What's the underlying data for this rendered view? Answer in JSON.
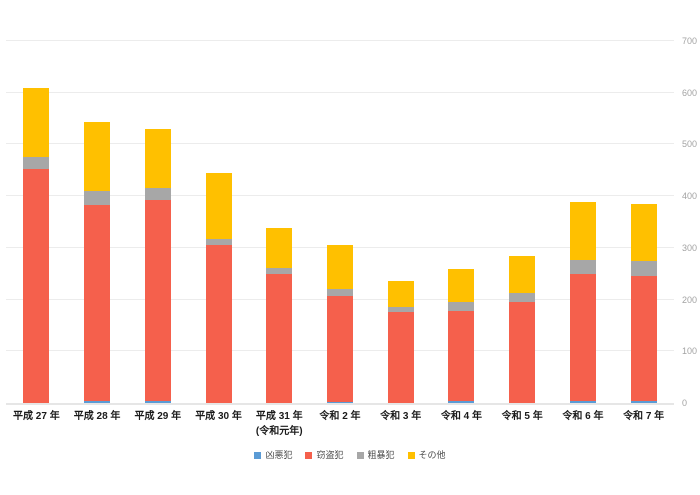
{
  "chart_data": {
    "type": "bar",
    "stacked": true,
    "title": "",
    "xlabel": "",
    "ylabel": "",
    "categories": [
      "平成 27 年",
      "平成 28 年",
      "平成 29 年",
      "平成 30 年",
      "平成 31 年 (令和元年)",
      "令和 2 年",
      "令和 3 年",
      "令和 4 年",
      "令和 5 年",
      "令和 6 年",
      "令和 7 年"
    ],
    "category_label_lines": [
      [
        "平成 27 年"
      ],
      [
        "平成 28 年"
      ],
      [
        "平成 29 年"
      ],
      [
        "平成 30 年"
      ],
      [
        "平成 31 年",
        "(令和元年)"
      ],
      [
        "令和 2 年"
      ],
      [
        "令和 3 年"
      ],
      [
        "令和 4 年"
      ],
      [
        "令和 5 年"
      ],
      [
        "令和 6 年"
      ],
      [
        "令和 7 年"
      ]
    ],
    "series": [
      {
        "name": "凶悪犯",
        "color": "#5B9BD5",
        "values": [
          0,
          3,
          3,
          0,
          0,
          2,
          0,
          3,
          0,
          3,
          3
        ]
      },
      {
        "name": "窃盗犯",
        "color": "#F5604C",
        "values": [
          453,
          379,
          390,
          305,
          249,
          204,
          176,
          175,
          196,
          246,
          243
        ]
      },
      {
        "name": "粗暴犯",
        "color": "#A7A7A7",
        "values": [
          23,
          28,
          22,
          12,
          12,
          14,
          9,
          17,
          17,
          27,
          29
        ]
      },
      {
        "name": "その他",
        "color": "#FFC000",
        "values": [
          134,
          134,
          114,
          128,
          78,
          85,
          51,
          64,
          72,
          112,
          110
        ]
      }
    ],
    "totals": [
      610,
      544,
      529,
      445,
      339,
      305,
      236,
      259,
      285,
      388,
      385
    ],
    "ylim": [
      0,
      700
    ],
    "yticks": [
      0,
      100,
      200,
      300,
      400,
      500,
      600,
      700
    ],
    "y_axis_side": "right",
    "grid": true,
    "legend_position": "bottom"
  },
  "colors": {
    "background": "#ffffff",
    "gridline": "#ececec",
    "y_tick_label": "#a3a3a3",
    "category_label": "#1a1a1a",
    "legend_label": "#4d4d4d"
  }
}
